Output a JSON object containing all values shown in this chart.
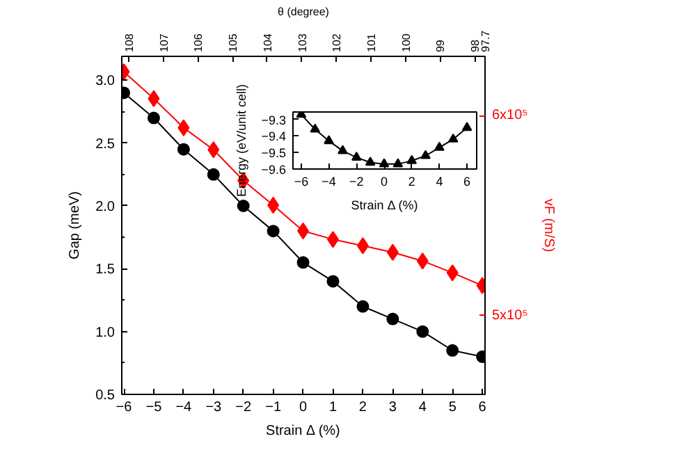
{
  "chart_data": [
    {
      "type": "line",
      "xlabel": "Strain Δ (%)",
      "ylabel": "Gap (meV)",
      "y2label": "vF (m/S)",
      "x2label": "θ (degree)",
      "x": [
        -6,
        -5,
        -4,
        -3,
        -2,
        -1,
        0,
        1,
        2,
        3,
        4,
        5,
        6
      ],
      "series": [
        {
          "color": "#000000",
          "marker": "circle",
          "values": [
            2.9,
            2.7,
            2.45,
            2.25,
            2.0,
            1.8,
            1.55,
            1.4,
            1.2,
            1.1,
            1.0,
            0.85,
            0.8
          ]
        },
        {
          "color": "#ff0000",
          "marker": "diamond",
          "axis": "y2",
          "values": [
            622000,
            608600,
            594000,
            583000,
            567600,
            555300,
            542400,
            538200,
            535000,
            531700,
            527400,
            521500,
            515100
          ]
        }
      ],
      "xlim": [
        -6.07,
        6.09
      ],
      "xticks": [
        -6,
        -5,
        -4,
        -3,
        -2,
        -1,
        0,
        1,
        2,
        3,
        4,
        5,
        6
      ],
      "ylim": [
        0.5,
        3.19
      ],
      "yticks": [
        0.5,
        {
          "value": 0.75,
          "label": null
        },
        {
          "value": 1.0,
          "label": "1.0"
        },
        {
          "value": 1.25,
          "label": null
        },
        1.5,
        {
          "value": 1.75,
          "label": null
        },
        {
          "value": 2.0,
          "label": "2.0"
        },
        {
          "value": 2.25,
          "label": null
        },
        2.5,
        {
          "value": 2.75,
          "label": null
        },
        {
          "value": 3.0,
          "label": "3.0"
        }
      ],
      "y2lim": [
        460700,
        629700
      ],
      "y2ticks": [
        {
          "value": 500000,
          "label": "5x10⁵"
        },
        {
          "value": 600000,
          "label": "6x10⁵"
        }
      ],
      "x2lim": [
        108.2,
        97.7
      ],
      "x2ticks": [
        108,
        107,
        106,
        105,
        104,
        103,
        102,
        101,
        100,
        99,
        98,
        97.7
      ],
      "grid": false
    },
    {
      "type": "line",
      "xlabel": "Strain Δ (%)",
      "ylabel": "Energy (eV/unit cell)",
      "x": [
        -6,
        -5,
        -4,
        -3,
        -2,
        -1,
        0,
        1,
        2,
        3,
        4,
        5,
        6
      ],
      "series": [
        {
          "color": "#000000",
          "marker": "triangle",
          "values": [
            -9.27,
            -9.36,
            -9.43,
            -9.49,
            -9.53,
            -9.56,
            -9.57,
            -9.57,
            -9.55,
            -9.52,
            -9.47,
            -9.42,
            -9.35
          ]
        }
      ],
      "xlim": [
        -6.6,
        6.7
      ],
      "xticks": [
        -6,
        -4,
        -2,
        0,
        2,
        4,
        6
      ],
      "ylim": [
        -9.6,
        -9.255
      ],
      "yticks": [
        -9.6,
        -9.5,
        -9.4,
        -9.3
      ],
      "grid": false
    }
  ]
}
